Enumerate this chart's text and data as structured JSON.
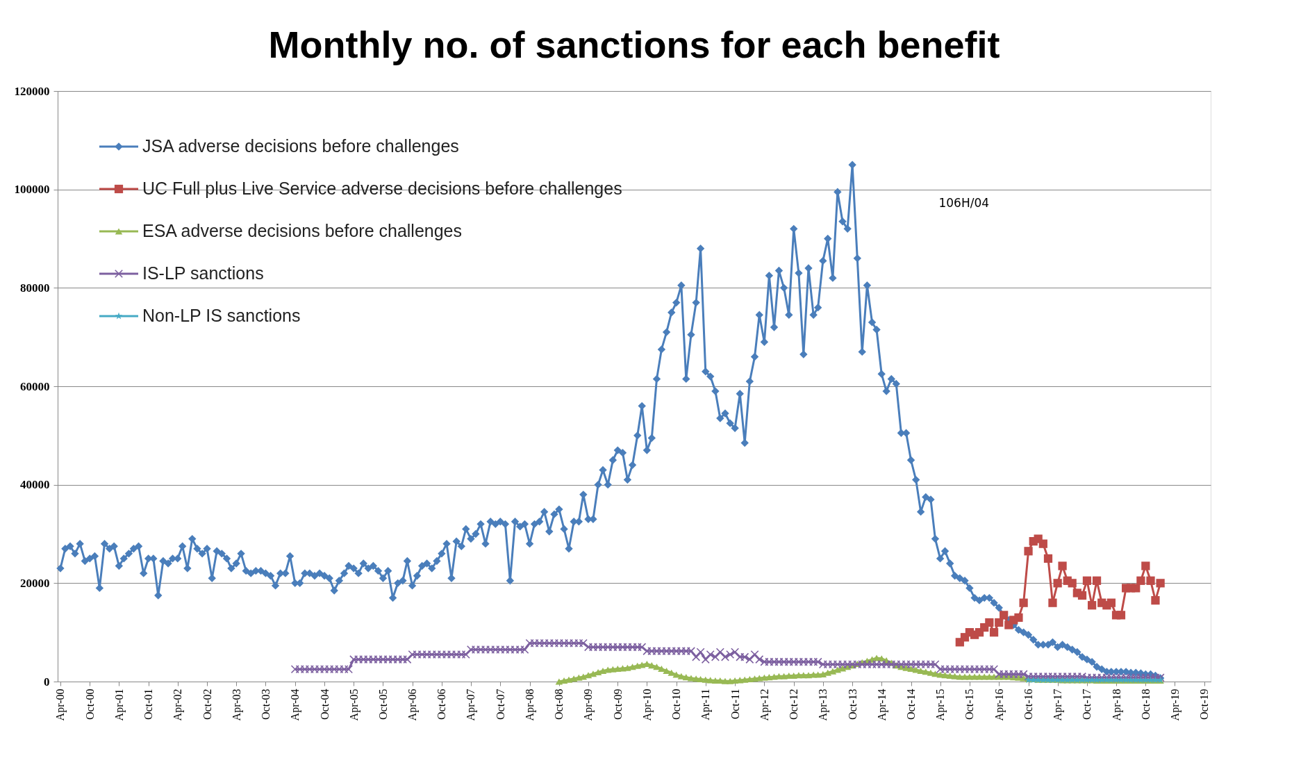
{
  "chart_data": {
    "type": "line",
    "title": "Monthly no. of sanctions for each benefit",
    "xlim": [
      "2000-03-15",
      "2019-11-10"
    ],
    "ylim": [
      0,
      120000
    ],
    "yticks": [
      0,
      20000,
      40000,
      60000,
      80000,
      100000,
      120000
    ],
    "xticks": [
      {
        "value": "2000-04",
        "label": "Apr-00"
      },
      {
        "value": "2000-10",
        "label": "Oct-00"
      },
      {
        "value": "2001-04",
        "label": "Apr-01"
      },
      {
        "value": "2001-10",
        "label": "Oct-01"
      },
      {
        "value": "2002-04",
        "label": "Apr-02"
      },
      {
        "value": "2002-10",
        "label": "Oct-02"
      },
      {
        "value": "2003-04",
        "label": "Apr-03"
      },
      {
        "value": "2003-10",
        "label": "Oct-03"
      },
      {
        "value": "2004-04",
        "label": "Apr-04"
      },
      {
        "value": "2004-10",
        "label": "Oct-04"
      },
      {
        "value": "2005-04",
        "label": "Apr-05"
      },
      {
        "value": "2005-10",
        "label": "Oct-05"
      },
      {
        "value": "2006-04",
        "label": "Apr-06"
      },
      {
        "value": "2006-10",
        "label": "Oct-06"
      },
      {
        "value": "2007-04",
        "label": "Apr-07"
      },
      {
        "value": "2007-10",
        "label": "Oct-07"
      },
      {
        "value": "2008-04",
        "label": "Apr-08"
      },
      {
        "value": "2008-10",
        "label": "Oct-08"
      },
      {
        "value": "2009-04",
        "label": "Apr-09"
      },
      {
        "value": "2009-10",
        "label": "Oct-09"
      },
      {
        "value": "2010-04",
        "label": "Apr-10"
      },
      {
        "value": "2010-10",
        "label": "Oct-10"
      },
      {
        "value": "2011-04",
        "label": "Apr-11"
      },
      {
        "value": "2011-10",
        "label": "Oct-11"
      },
      {
        "value": "2012-04",
        "label": "Apr-12"
      },
      {
        "value": "2012-10",
        "label": "Oct-12"
      },
      {
        "value": "2013-04",
        "label": "Apr-13"
      },
      {
        "value": "2013-10",
        "label": "Oct-13"
      },
      {
        "value": "2014-04",
        "label": "Apr-14"
      },
      {
        "value": "2014-10",
        "label": "Oct-14"
      },
      {
        "value": "2015-04",
        "label": "Apr-15"
      },
      {
        "value": "2015-10",
        "label": "Oct-15"
      },
      {
        "value": "2016-04",
        "label": "Apr-16"
      },
      {
        "value": "2016-10",
        "label": "Oct-16"
      },
      {
        "value": "2017-04",
        "label": "Apr-17"
      },
      {
        "value": "2017-10",
        "label": "Oct-17"
      },
      {
        "value": "2018-04",
        "label": "Apr-18"
      },
      {
        "value": "2018-10",
        "label": "Oct-18"
      },
      {
        "value": "2019-04",
        "label": "Apr-19"
      },
      {
        "value": "2019-10",
        "label": "Oct-19"
      }
    ],
    "grid": "y",
    "legend": "top left",
    "line_style": "solid",
    "annotations": [
      "106H/04"
    ],
    "series": [
      {
        "name": "JSA adverse decisions before challenges",
        "color": "#4a7ebb",
        "marker": "diamond",
        "x": [
          "2000-04",
          "2000-05",
          "2000-06",
          "2000-07",
          "2000-08",
          "2000-09",
          "2000-10",
          "2000-11",
          "2000-12",
          "2001-01",
          "2001-02",
          "2001-03",
          "2001-04",
          "2001-05",
          "2001-06",
          "2001-07",
          "2001-08",
          "2001-09",
          "2001-10",
          "2001-11",
          "2001-12",
          "2002-01",
          "2002-02",
          "2002-03",
          "2002-04",
          "2002-05",
          "2002-06",
          "2002-07",
          "2002-08",
          "2002-09",
          "2002-10",
          "2002-11",
          "2002-12",
          "2003-01",
          "2003-02",
          "2003-03",
          "2003-04",
          "2003-05",
          "2003-06",
          "2003-07",
          "2003-08",
          "2003-09",
          "2003-10",
          "2003-11",
          "2003-12",
          "2004-01",
          "2004-02",
          "2004-03",
          "2004-04",
          "2004-05",
          "2004-06",
          "2004-07",
          "2004-08",
          "2004-09",
          "2004-10",
          "2004-11",
          "2004-12",
          "2005-01",
          "2005-02",
          "2005-03",
          "2005-04",
          "2005-05",
          "2005-06",
          "2005-07",
          "2005-08",
          "2005-09",
          "2005-10",
          "2005-11",
          "2005-12",
          "2006-01",
          "2006-02",
          "2006-03",
          "2006-04",
          "2006-05",
          "2006-06",
          "2006-07",
          "2006-08",
          "2006-09",
          "2006-10",
          "2006-11",
          "2006-12",
          "2007-01",
          "2007-02",
          "2007-03",
          "2007-04",
          "2007-05",
          "2007-06",
          "2007-07",
          "2007-08",
          "2007-09",
          "2007-10",
          "2007-11",
          "2007-12",
          "2008-01",
          "2008-02",
          "2008-03",
          "2008-04",
          "2008-05",
          "2008-06",
          "2008-07",
          "2008-08",
          "2008-09",
          "2008-10",
          "2008-11",
          "2008-12",
          "2009-01",
          "2009-02",
          "2009-03",
          "2009-04",
          "2009-05",
          "2009-06",
          "2009-07",
          "2009-08",
          "2009-09",
          "2009-10",
          "2009-11",
          "2009-12",
          "2010-01",
          "2010-02",
          "2010-03",
          "2010-04",
          "2010-05",
          "2010-06",
          "2010-07",
          "2010-08",
          "2010-09",
          "2010-10",
          "2010-11",
          "2010-12",
          "2011-01",
          "2011-02",
          "2011-03",
          "2011-04",
          "2011-05",
          "2011-06",
          "2011-07",
          "2011-08",
          "2011-09",
          "2011-10",
          "2011-11",
          "2011-12",
          "2012-01",
          "2012-02",
          "2012-03",
          "2012-04",
          "2012-05",
          "2012-06",
          "2012-07",
          "2012-08",
          "2012-09",
          "2012-10",
          "2012-11",
          "2012-12",
          "2013-01",
          "2013-02",
          "2013-03",
          "2013-04",
          "2013-05",
          "2013-06",
          "2013-07",
          "2013-08",
          "2013-09",
          "2013-10",
          "2013-11",
          "2013-12",
          "2014-01",
          "2014-02",
          "2014-03",
          "2014-04",
          "2014-05",
          "2014-06",
          "2014-07",
          "2014-08",
          "2014-09",
          "2014-10",
          "2014-11",
          "2014-12",
          "2015-01",
          "2015-02",
          "2015-03",
          "2015-04",
          "2015-05",
          "2015-06",
          "2015-07",
          "2015-08",
          "2015-09",
          "2015-10",
          "2015-11",
          "2015-12",
          "2016-01",
          "2016-02",
          "2016-03",
          "2016-04",
          "2016-05",
          "2016-06",
          "2016-07",
          "2016-08",
          "2016-09",
          "2016-10",
          "2016-11",
          "2016-12",
          "2017-01",
          "2017-02",
          "2017-03",
          "2017-04",
          "2017-05",
          "2017-06",
          "2017-07",
          "2017-08",
          "2017-09",
          "2017-10",
          "2017-11",
          "2017-12",
          "2018-01",
          "2018-02",
          "2018-03",
          "2018-04",
          "2018-05",
          "2018-06",
          "2018-07",
          "2018-08",
          "2018-09",
          "2018-10",
          "2018-11",
          "2018-12",
          "2019-01"
        ],
        "values": [
          23000,
          27000,
          27500,
          26000,
          28000,
          24500,
          25000,
          25500,
          19000,
          28000,
          27000,
          27500,
          23500,
          25000,
          26000,
          27000,
          27500,
          22000,
          25000,
          25000,
          17500,
          24500,
          24000,
          25000,
          25000,
          27500,
          23000,
          29000,
          27000,
          26000,
          27000,
          21000,
          26500,
          26000,
          25000,
          23000,
          24000,
          26000,
          22500,
          22000,
          22500,
          22500,
          22000,
          21500,
          19500,
          22000,
          22000,
          25500,
          20000,
          20000,
          22000,
          22000,
          21500,
          22000,
          21500,
          21000,
          18500,
          20500,
          22000,
          23500,
          23000,
          22000,
          24000,
          23000,
          23500,
          22500,
          21000,
          22500,
          17000,
          20000,
          20500,
          24500,
          19500,
          21500,
          23500,
          24000,
          23000,
          24500,
          26000,
          28000,
          21000,
          28500,
          27500,
          31000,
          29000,
          30000,
          32000,
          28000,
          32500,
          32000,
          32500,
          32000,
          20500,
          32500,
          31500,
          32000,
          28000,
          32000,
          32500,
          34500,
          30500,
          34000,
          35000,
          31000,
          27000,
          32500,
          32500,
          38000,
          33000,
          33000,
          40000,
          43000,
          40000,
          45000,
          47000,
          46500,
          41000,
          44000,
          50000,
          56000,
          47000,
          49500,
          61500,
          67500,
          71000,
          75000,
          77000,
          80500,
          61500,
          70500,
          77000,
          88000,
          63000,
          62000,
          59000,
          53500,
          54500,
          52500,
          51500,
          58500,
          48500,
          61000,
          66000,
          74500,
          69000,
          82500,
          72000,
          83500,
          80000,
          74500,
          92000,
          83000,
          66500,
          84000,
          74500,
          76000,
          85500,
          90000,
          82000,
          99500,
          93500,
          92000,
          105000,
          86000,
          67000,
          80500,
          73000,
          71500,
          62500,
          59000,
          61500,
          60500,
          50500,
          50500,
          45000,
          41000,
          34500,
          37500,
          37000,
          29000,
          25000,
          26500,
          24000,
          21500,
          21000,
          20500,
          19000,
          17000,
          16500,
          17000,
          17000,
          16000,
          15000,
          13500,
          12500,
          11500,
          10500,
          10000,
          9500,
          8500,
          7500,
          7500,
          7500,
          8000,
          7000,
          7500,
          7000,
          6500,
          6000,
          5000,
          4500,
          4000,
          3000,
          2500,
          2000,
          2000,
          2000,
          2000,
          2000,
          1800,
          1800,
          1700,
          1500,
          1500,
          1200,
          700
        ]
      },
      {
        "name": "UC Full plus Live Service adverse decisions before challenges",
        "color": "#be4b48",
        "marker": "square",
        "x": [
          "2015-08",
          "2015-09",
          "2015-10",
          "2015-11",
          "2015-12",
          "2016-01",
          "2016-02",
          "2016-03",
          "2016-04",
          "2016-05",
          "2016-06",
          "2016-07",
          "2016-08",
          "2016-09",
          "2016-10",
          "2016-11",
          "2016-12",
          "2017-01",
          "2017-02",
          "2017-03",
          "2017-04",
          "2017-05",
          "2017-06",
          "2017-07",
          "2017-08",
          "2017-09",
          "2017-10",
          "2017-11",
          "2017-12",
          "2018-01",
          "2018-02",
          "2018-03",
          "2018-04",
          "2018-05",
          "2018-06",
          "2018-07",
          "2018-08",
          "2018-09",
          "2018-10",
          "2018-11",
          "2018-12",
          "2019-01"
        ],
        "values": [
          8000,
          9000,
          10000,
          9500,
          10000,
          11000,
          12000,
          10000,
          12000,
          13500,
          11500,
          12500,
          13000,
          16000,
          26500,
          28500,
          29000,
          28000,
          25000,
          16000,
          20000,
          23500,
          20500,
          20000,
          18000,
          17500,
          20500,
          15500,
          20500,
          16000,
          15500,
          16000,
          13500,
          13500,
          19000,
          19000,
          19000,
          20500,
          23500,
          20500,
          16500,
          20000
        ]
      },
      {
        "name": "ESA adverse decisions before challenges",
        "color": "#98b954",
        "marker": "triangle",
        "x": [
          "2008-10",
          "2008-11",
          "2008-12",
          "2009-01",
          "2009-02",
          "2009-03",
          "2009-04",
          "2009-05",
          "2009-06",
          "2009-07",
          "2009-08",
          "2009-09",
          "2009-10",
          "2009-11",
          "2009-12",
          "2010-01",
          "2010-02",
          "2010-03",
          "2010-04",
          "2010-05",
          "2010-06",
          "2010-07",
          "2010-08",
          "2010-09",
          "2010-10",
          "2010-11",
          "2010-12",
          "2011-01",
          "2011-02",
          "2011-03",
          "2011-04",
          "2011-05",
          "2011-06",
          "2011-07",
          "2011-08",
          "2011-09",
          "2011-10",
          "2011-11",
          "2011-12",
          "2012-01",
          "2012-02",
          "2012-03",
          "2012-04",
          "2012-05",
          "2012-06",
          "2012-07",
          "2012-08",
          "2012-09",
          "2012-10",
          "2012-11",
          "2012-12",
          "2013-01",
          "2013-02",
          "2013-03",
          "2013-04",
          "2013-05",
          "2013-06",
          "2013-07",
          "2013-08",
          "2013-09",
          "2013-10",
          "2013-11",
          "2013-12",
          "2014-01",
          "2014-02",
          "2014-03",
          "2014-04",
          "2014-05",
          "2014-06",
          "2014-07",
          "2014-08",
          "2014-09",
          "2014-10",
          "2014-11",
          "2014-12",
          "2015-01",
          "2015-02",
          "2015-03",
          "2015-04",
          "2015-05",
          "2015-06",
          "2015-07",
          "2015-08",
          "2015-09",
          "2015-10",
          "2015-11",
          "2015-12",
          "2016-01",
          "2016-02",
          "2016-03",
          "2016-04",
          "2016-05",
          "2016-06",
          "2016-07",
          "2016-08",
          "2016-09",
          "2016-10",
          "2016-11",
          "2016-12",
          "2017-01",
          "2017-02",
          "2017-03",
          "2017-04",
          "2017-05",
          "2017-06",
          "2017-07",
          "2017-08",
          "2017-09",
          "2017-10",
          "2017-11",
          "2017-12",
          "2018-01",
          "2018-02",
          "2018-03",
          "2018-04",
          "2018-05",
          "2018-06",
          "2018-07",
          "2018-08",
          "2018-09",
          "2018-10",
          "2018-11",
          "2018-12",
          "2019-01"
        ],
        "values": [
          0,
          200,
          400,
          600,
          800,
          1000,
          1300,
          1600,
          1900,
          2200,
          2400,
          2500,
          2600,
          2700,
          2800,
          3000,
          3200,
          3400,
          3600,
          3300,
          3000,
          2600,
          2200,
          1800,
          1400,
          1100,
          900,
          700,
          600,
          500,
          400,
          300,
          200,
          200,
          100,
          100,
          200,
          300,
          400,
          500,
          600,
          700,
          800,
          900,
          1000,
          1100,
          1100,
          1200,
          1200,
          1300,
          1300,
          1300,
          1400,
          1400,
          1500,
          1800,
          2100,
          2400,
          2700,
          3000,
          3300,
          3600,
          3900,
          4200,
          4500,
          4800,
          4700,
          4300,
          3800,
          3300,
          3000,
          2800,
          2600,
          2400,
          2200,
          2000,
          1800,
          1600,
          1400,
          1300,
          1200,
          1100,
          1000,
          1000,
          1000,
          1000,
          1000,
          1000,
          1000,
          1000,
          1000,
          1000,
          1000,
          900,
          800,
          700,
          500,
          500,
          400,
          400,
          400,
          400,
          400,
          300,
          300,
          300,
          300,
          300,
          300,
          300,
          200,
          200,
          200,
          200,
          200,
          200,
          200,
          200,
          200,
          200,
          200,
          200,
          200,
          200
        ]
      },
      {
        "name": "IS-LP sanctions",
        "color": "#7d60a0",
        "marker": "cross",
        "x": [
          "2004-04",
          "2004-05",
          "2004-06",
          "2004-07",
          "2004-08",
          "2004-09",
          "2004-10",
          "2004-11",
          "2004-12",
          "2005-01",
          "2005-02",
          "2005-03",
          "2005-04",
          "2005-05",
          "2005-06",
          "2005-07",
          "2005-08",
          "2005-09",
          "2005-10",
          "2005-11",
          "2005-12",
          "2006-01",
          "2006-02",
          "2006-03",
          "2006-04",
          "2006-05",
          "2006-06",
          "2006-07",
          "2006-08",
          "2006-09",
          "2006-10",
          "2006-11",
          "2006-12",
          "2007-01",
          "2007-02",
          "2007-03",
          "2007-04",
          "2007-05",
          "2007-06",
          "2007-07",
          "2007-08",
          "2007-09",
          "2007-10",
          "2007-11",
          "2007-12",
          "2008-01",
          "2008-02",
          "2008-03",
          "2008-04",
          "2008-05",
          "2008-06",
          "2008-07",
          "2008-08",
          "2008-09",
          "2008-10",
          "2008-11",
          "2008-12",
          "2009-01",
          "2009-02",
          "2009-03",
          "2009-04",
          "2009-05",
          "2009-06",
          "2009-07",
          "2009-08",
          "2009-09",
          "2009-10",
          "2009-11",
          "2009-12",
          "2010-01",
          "2010-02",
          "2010-03",
          "2010-04",
          "2010-05",
          "2010-06",
          "2010-07",
          "2010-08",
          "2010-09",
          "2010-10",
          "2010-11",
          "2010-12",
          "2011-01",
          "2011-02",
          "2011-03",
          "2011-04",
          "2011-05",
          "2011-06",
          "2011-07",
          "2011-08",
          "2011-09",
          "2011-10",
          "2011-11",
          "2011-12",
          "2012-01",
          "2012-02",
          "2012-03",
          "2012-04",
          "2012-05",
          "2012-06",
          "2012-07",
          "2012-08",
          "2012-09",
          "2012-10",
          "2012-11",
          "2012-12",
          "2013-01",
          "2013-02",
          "2013-03",
          "2013-04",
          "2013-05",
          "2013-06",
          "2013-07",
          "2013-08",
          "2013-09",
          "2013-10",
          "2013-11",
          "2013-12",
          "2014-01",
          "2014-02",
          "2014-03",
          "2014-04",
          "2014-05",
          "2014-06",
          "2014-07",
          "2014-08",
          "2014-09",
          "2014-10",
          "2014-11",
          "2014-12",
          "2015-01",
          "2015-02",
          "2015-03",
          "2015-04",
          "2015-05",
          "2015-06",
          "2015-07",
          "2015-08",
          "2015-09",
          "2015-10",
          "2015-11",
          "2015-12",
          "2016-01",
          "2016-02",
          "2016-03",
          "2016-04",
          "2016-05",
          "2016-06",
          "2016-07",
          "2016-08",
          "2016-09",
          "2016-10",
          "2016-11",
          "2016-12",
          "2017-01",
          "2017-02",
          "2017-03",
          "2017-04",
          "2017-05",
          "2017-06",
          "2017-07",
          "2017-08",
          "2017-09",
          "2017-10",
          "2017-11",
          "2017-12",
          "2018-01",
          "2018-02",
          "2018-03",
          "2018-04",
          "2018-05",
          "2018-06",
          "2018-07",
          "2018-08",
          "2018-09",
          "2018-10",
          "2018-11",
          "2018-12",
          "2019-01"
        ],
        "values": [
          2500,
          2500,
          2500,
          2500,
          2500,
          2500,
          2500,
          2500,
          2500,
          2500,
          2500,
          2500,
          4500,
          4500,
          4500,
          4500,
          4500,
          4500,
          4500,
          4500,
          4500,
          4500,
          4500,
          4500,
          5500,
          5500,
          5500,
          5500,
          5500,
          5500,
          5500,
          5500,
          5500,
          5500,
          5500,
          5500,
          6500,
          6500,
          6500,
          6500,
          6500,
          6500,
          6500,
          6500,
          6500,
          6500,
          6500,
          6500,
          7800,
          7800,
          7800,
          7800,
          7800,
          7800,
          7800,
          7800,
          7800,
          7800,
          7800,
          7800,
          7000,
          7000,
          7000,
          7000,
          7000,
          7000,
          7000,
          7000,
          7000,
          7000,
          7000,
          7000,
          6200,
          6200,
          6200,
          6200,
          6200,
          6200,
          6200,
          6200,
          6200,
          6200,
          5000,
          6000,
          4500,
          5500,
          5000,
          6000,
          5000,
          5500,
          6000,
          5000,
          5000,
          4500,
          5500,
          4500,
          4000,
          4000,
          4000,
          4000,
          4000,
          4000,
          4000,
          4000,
          4000,
          4000,
          4000,
          4000,
          3500,
          3500,
          3500,
          3500,
          3500,
          3500,
          3500,
          3500,
          3500,
          3500,
          3500,
          3500,
          3500,
          3500,
          3500,
          3500,
          3500,
          3500,
          3500,
          3500,
          3500,
          3500,
          3500,
          3500,
          2500,
          2500,
          2500,
          2500,
          2500,
          2500,
          2500,
          2500,
          2500,
          2500,
          2500,
          2500,
          1500,
          1500,
          1500,
          1500,
          1500,
          1500,
          1000,
          1000,
          1000,
          1000,
          1000,
          1000,
          1000,
          1000,
          1000,
          1000,
          1000,
          1000,
          800,
          800,
          800,
          800,
          800,
          800,
          800,
          800,
          800,
          800,
          800,
          800,
          800,
          800,
          800,
          800
        ]
      },
      {
        "name": "Non-LP IS sanctions",
        "color": "#46aac5",
        "marker": "star",
        "x": [
          "2016-10",
          "2016-11",
          "2016-12",
          "2017-01",
          "2017-02",
          "2017-03",
          "2017-04",
          "2017-05",
          "2017-06",
          "2017-07",
          "2017-08",
          "2017-09",
          "2017-10",
          "2017-11",
          "2017-12",
          "2018-01",
          "2018-02",
          "2018-03",
          "2018-04",
          "2018-05",
          "2018-06",
          "2018-07",
          "2018-08",
          "2018-09",
          "2018-10",
          "2018-11",
          "2018-12",
          "2019-01"
        ],
        "values": [
          300,
          300,
          300,
          300,
          300,
          300,
          300,
          300,
          300,
          300,
          300,
          300,
          300,
          300,
          300,
          300,
          300,
          300,
          300,
          300,
          300,
          300,
          300,
          300,
          300,
          300,
          300,
          300
        ]
      }
    ]
  }
}
